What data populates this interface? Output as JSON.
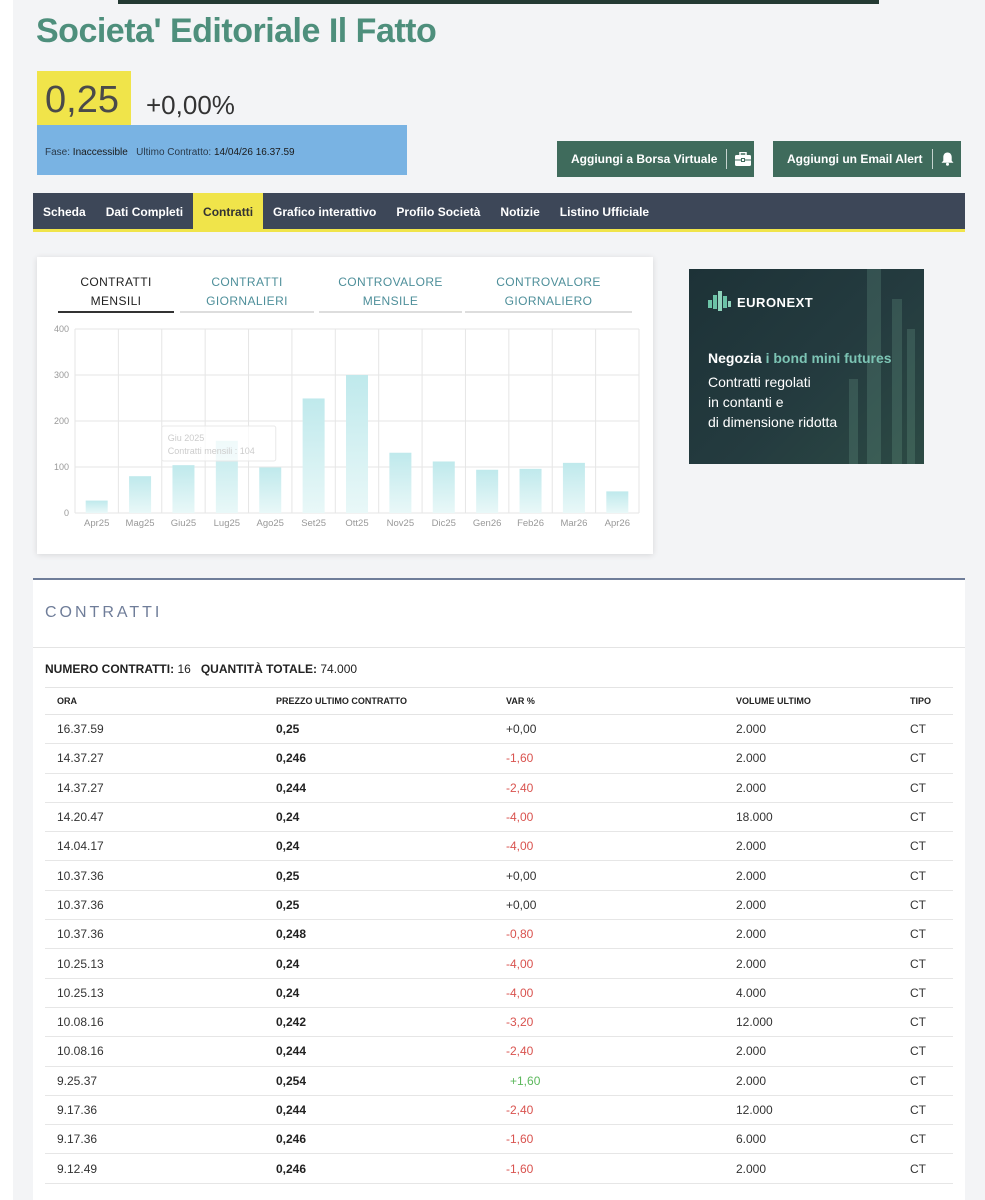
{
  "title": "Societa' Editoriale Il Fatto",
  "quote": {
    "price": "0,25",
    "change": "+0,00%",
    "phase_label": "Fase:",
    "phase_value": "Inaccessible",
    "last_label": "Ultimo Contratto:",
    "last_value": "14/04/26  16.37.59"
  },
  "buttons": {
    "borsa_virtuale": "Aggiungi a Borsa Virtuale",
    "email_alert": "Aggiungi un Email Alert"
  },
  "nav": {
    "items": [
      "Scheda",
      "Dati Completi",
      "Contratti",
      "Grafico interattivo",
      "Profilo Società",
      "Notizie",
      "Listino Ufficiale"
    ],
    "active": "Contratti"
  },
  "chart_tabs": [
    {
      "line1": "CONTRATTI",
      "line2": "MENSILI"
    },
    {
      "line1": "CONTRATTI",
      "line2": "GIORNALIERI"
    },
    {
      "line1": "CONTROVALORE",
      "line2": "MENSILE"
    },
    {
      "line1": "CONTROVALORE",
      "line2": "GIORNALIERO"
    }
  ],
  "chart_data": {
    "type": "bar",
    "categories": [
      "Apr25",
      "Mag25",
      "Giu25",
      "Lug25",
      "Ago25",
      "Set25",
      "Ott25",
      "Nov25",
      "Dic25",
      "Gen26",
      "Feb26",
      "Mar26",
      "Apr26"
    ],
    "values": [
      27,
      80,
      104,
      157,
      99,
      249,
      300,
      131,
      112,
      94,
      96,
      109,
      47
    ],
    "ylim": [
      0,
      400
    ],
    "yticks": [
      0,
      100,
      200,
      300,
      400
    ],
    "grid": true,
    "tooltip": {
      "title": "Giu 2025",
      "label": "Contratti mensili : 104"
    }
  },
  "ad": {
    "brand": "EURONEXT",
    "headline_a": "Negozia",
    "headline_b": "i bond mini futures",
    "lines": [
      "Contratti regolati",
      "in contanti e",
      "di dimensione ridotta"
    ]
  },
  "section": {
    "title": "CONTRATTI",
    "count_label": "NUMERO CONTRATTI:",
    "count_value": "16",
    "qty_label": "QUANTITÀ TOTALE:",
    "qty_value": "74.000"
  },
  "table": {
    "headers": [
      "ORA",
      "PREZZO ULTIMO CONTRATTO",
      "VAR %",
      "VOLUME ULTIMO",
      "TIPO"
    ],
    "rows": [
      {
        "ora": "16.37.59",
        "prezzo": "0,25",
        "var": "+0,00",
        "sign": "zero",
        "volume": "2.000",
        "tipo": "CT"
      },
      {
        "ora": "14.37.27",
        "prezzo": "0,246",
        "var": "-1,60",
        "sign": "neg",
        "volume": "2.000",
        "tipo": "CT"
      },
      {
        "ora": "14.37.27",
        "prezzo": "0,244",
        "var": "-2,40",
        "sign": "neg",
        "volume": "2.000",
        "tipo": "CT"
      },
      {
        "ora": "14.20.47",
        "prezzo": "0,24",
        "var": "-4,00",
        "sign": "neg",
        "volume": "18.000",
        "tipo": "CT"
      },
      {
        "ora": "14.04.17",
        "prezzo": "0,24",
        "var": "-4,00",
        "sign": "neg",
        "volume": "2.000",
        "tipo": "CT"
      },
      {
        "ora": "10.37.36",
        "prezzo": "0,25",
        "var": "+0,00",
        "sign": "zero",
        "volume": "2.000",
        "tipo": "CT"
      },
      {
        "ora": "10.37.36",
        "prezzo": "0,25",
        "var": "+0,00",
        "sign": "zero",
        "volume": "2.000",
        "tipo": "CT"
      },
      {
        "ora": "10.37.36",
        "prezzo": "0,248",
        "var": "-0,80",
        "sign": "neg",
        "volume": "2.000",
        "tipo": "CT"
      },
      {
        "ora": "10.25.13",
        "prezzo": "0,24",
        "var": "-4,00",
        "sign": "neg",
        "volume": "2.000",
        "tipo": "CT"
      },
      {
        "ora": "10.25.13",
        "prezzo": "0,24",
        "var": "-4,00",
        "sign": "neg",
        "volume": "4.000",
        "tipo": "CT"
      },
      {
        "ora": "10.08.16",
        "prezzo": "0,242",
        "var": "-3,20",
        "sign": "neg",
        "volume": "12.000",
        "tipo": "CT"
      },
      {
        "ora": "10.08.16",
        "prezzo": "0,244",
        "var": "-2,40",
        "sign": "neg",
        "volume": "2.000",
        "tipo": "CT"
      },
      {
        "ora": "9.25.37",
        "prezzo": "0,254",
        "var": "+1,60",
        "sign": "pos",
        "volume": "2.000",
        "tipo": "CT"
      },
      {
        "ora": "9.17.36",
        "prezzo": "0,244",
        "var": "-2,40",
        "sign": "neg",
        "volume": "12.000",
        "tipo": "CT"
      },
      {
        "ora": "9.17.36",
        "prezzo": "0,246",
        "var": "-1,60",
        "sign": "neg",
        "volume": "6.000",
        "tipo": "CT"
      },
      {
        "ora": "9.12.49",
        "prezzo": "0,246",
        "var": "-1,60",
        "sign": "neg",
        "volume": "2.000",
        "tipo": "CT"
      }
    ]
  },
  "colors": {
    "accent_yellow": "#f0e44a",
    "brand_green": "#4e8f7c",
    "button_green": "#3f6b5c",
    "nav_bg": "#3d4758",
    "bar_fill": "#bfe9ec",
    "negative": "#d9534f",
    "positive": "#5cb85c"
  }
}
